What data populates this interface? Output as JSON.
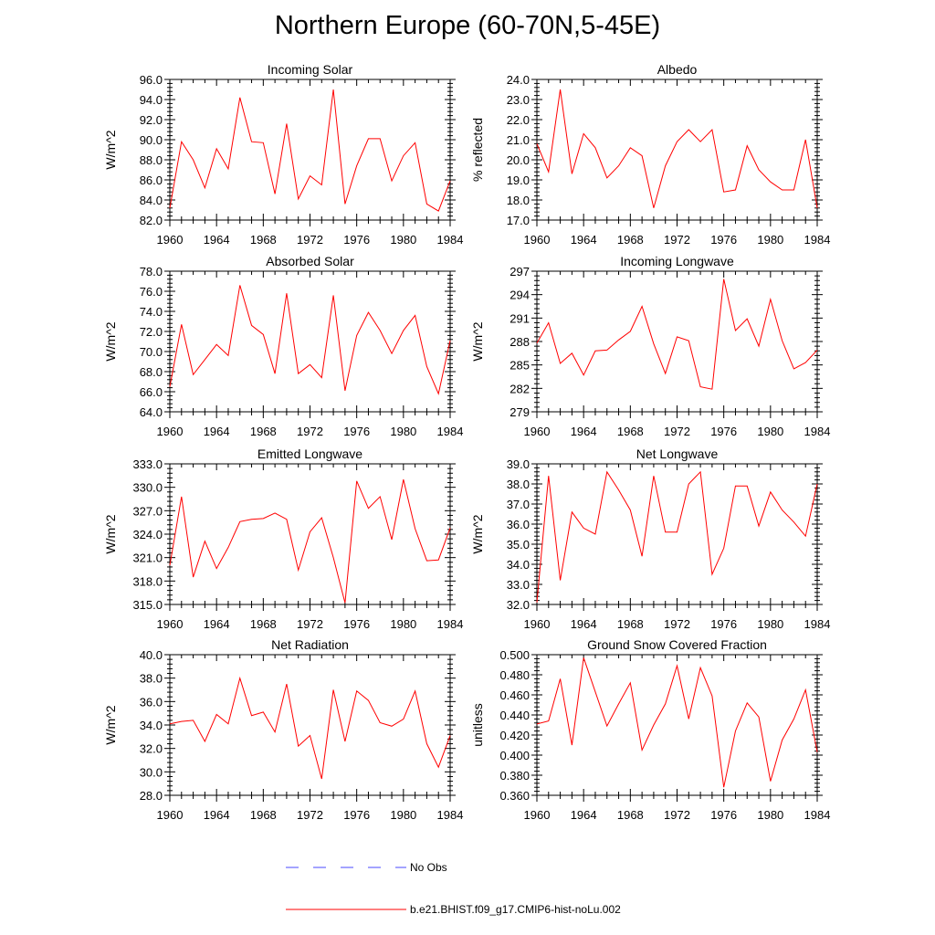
{
  "title": "Northern Europe (60-70N,5-45E)",
  "colors": {
    "model": "#ff0000",
    "obs": "#4a4aff",
    "axis": "#000000"
  },
  "legend": [
    {
      "label": "No Obs",
      "style": "dashed",
      "color": "#4a4aff"
    },
    {
      "label": "b.e21.BHIST.f09_g17.CMIP6-hist-noLu.002",
      "style": "solid",
      "color": "#ff0000"
    }
  ],
  "chart_data": [
    {
      "type": "line",
      "title": "Incoming Solar",
      "ylabel": "W/m^2",
      "xlabel": "",
      "xlim": [
        1960,
        1984
      ],
      "ylim": [
        82,
        96
      ],
      "xticks": [
        "1960",
        "1964",
        "1968",
        "1972",
        "1976",
        "1980",
        "1984"
      ],
      "yticks": [
        "82.0",
        "84.0",
        "86.0",
        "88.0",
        "90.0",
        "92.0",
        "94.0",
        "96.0"
      ],
      "x": [
        1960,
        1961,
        1962,
        1963,
        1964,
        1965,
        1966,
        1967,
        1968,
        1969,
        1970,
        1971,
        1972,
        1973,
        1974,
        1975,
        1976,
        1977,
        1978,
        1979,
        1980,
        1981,
        1982,
        1983,
        1984
      ],
      "series": [
        {
          "name": "b.e21.BHIST.f09_g17.CMIP6-hist-noLu.002",
          "values": [
            83.2,
            89.8,
            88.0,
            85.2,
            89.1,
            87.1,
            94.2,
            89.8,
            89.7,
            84.6,
            91.6,
            84.1,
            86.4,
            85.5,
            95.0,
            83.6,
            87.4,
            90.1,
            90.1,
            85.9,
            88.4,
            89.7,
            83.6,
            82.9,
            85.9
          ]
        }
      ]
    },
    {
      "type": "line",
      "title": "Albedo",
      "ylabel": "% reflected",
      "xlabel": "",
      "xlim": [
        1960,
        1984
      ],
      "ylim": [
        17,
        24
      ],
      "xticks": [
        "1960",
        "1964",
        "1968",
        "1972",
        "1976",
        "1980",
        "1984"
      ],
      "yticks": [
        "17.0",
        "18.0",
        "19.0",
        "20.0",
        "21.0",
        "22.0",
        "23.0",
        "24.0"
      ],
      "x": [
        1960,
        1961,
        1962,
        1963,
        1964,
        1965,
        1966,
        1967,
        1968,
        1969,
        1970,
        1971,
        1972,
        1973,
        1974,
        1975,
        1976,
        1977,
        1978,
        1979,
        1980,
        1981,
        1982,
        1983,
        1984
      ],
      "series": [
        {
          "name": "b.e21.BHIST.f09_g17.CMIP6-hist-noLu.002",
          "values": [
            20.8,
            19.4,
            23.5,
            19.3,
            21.3,
            20.6,
            19.1,
            19.7,
            20.6,
            20.2,
            17.6,
            19.7,
            20.9,
            21.5,
            20.9,
            21.5,
            18.4,
            18.5,
            20.7,
            19.5,
            18.9,
            18.5,
            18.5,
            21.0,
            17.6
          ]
        }
      ]
    },
    {
      "type": "line",
      "title": "Absorbed Solar",
      "ylabel": "W/m^2",
      "xlabel": "",
      "xlim": [
        1960,
        1984
      ],
      "ylim": [
        64,
        78
      ],
      "xticks": [
        "1960",
        "1964",
        "1968",
        "1972",
        "1976",
        "1980",
        "1984"
      ],
      "yticks": [
        "64.0",
        "66.0",
        "68.0",
        "70.0",
        "72.0",
        "74.0",
        "76.0",
        "78.0"
      ],
      "x": [
        1960,
        1961,
        1962,
        1963,
        1964,
        1965,
        1966,
        1967,
        1968,
        1969,
        1970,
        1971,
        1972,
        1973,
        1974,
        1975,
        1976,
        1977,
        1978,
        1979,
        1980,
        1981,
        1982,
        1983,
        1984
      ],
      "series": [
        {
          "name": "b.e21.BHIST.f09_g17.CMIP6-hist-noLu.002",
          "values": [
            66.5,
            72.7,
            67.7,
            69.2,
            70.7,
            69.6,
            76.6,
            72.6,
            71.7,
            67.8,
            75.8,
            67.8,
            68.7,
            67.4,
            75.6,
            66.1,
            71.6,
            73.9,
            72.1,
            69.8,
            72.1,
            73.6,
            68.5,
            65.8,
            71.1
          ]
        }
      ]
    },
    {
      "type": "line",
      "title": "Incoming Longwave",
      "ylabel": "W/m^2",
      "xlabel": "",
      "xlim": [
        1960,
        1984
      ],
      "ylim": [
        279,
        297
      ],
      "xticks": [
        "1960",
        "1964",
        "1968",
        "1972",
        "1976",
        "1980",
        "1984"
      ],
      "yticks": [
        "279",
        "282",
        "285",
        "288",
        "291",
        "294",
        "297"
      ],
      "x": [
        1960,
        1961,
        1962,
        1963,
        1964,
        1965,
        1966,
        1967,
        1968,
        1969,
        1970,
        1971,
        1972,
        1973,
        1974,
        1975,
        1976,
        1977,
        1978,
        1979,
        1980,
        1981,
        1982,
        1983,
        1984
      ],
      "series": [
        {
          "name": "b.e21.BHIST.f09_g17.CMIP6-hist-noLu.002",
          "values": [
            287.8,
            290.4,
            285.2,
            286.5,
            283.7,
            286.8,
            286.9,
            288.2,
            289.3,
            292.5,
            287.7,
            283.9,
            288.6,
            288.1,
            282.2,
            281.9,
            296.0,
            289.4,
            290.9,
            287.4,
            293.4,
            288.1,
            284.5,
            285.3,
            286.9
          ]
        }
      ]
    },
    {
      "type": "line",
      "title": "Emitted Longwave",
      "ylabel": "W/m^2",
      "xlabel": "",
      "xlim": [
        1960,
        1984
      ],
      "ylim": [
        315,
        333
      ],
      "xticks": [
        "1960",
        "1964",
        "1968",
        "1972",
        "1976",
        "1980",
        "1984"
      ],
      "yticks": [
        "315.0",
        "318.0",
        "321.0",
        "324.0",
        "327.0",
        "330.0",
        "333.0"
      ],
      "x": [
        1960,
        1961,
        1962,
        1963,
        1964,
        1965,
        1966,
        1967,
        1968,
        1969,
        1970,
        1971,
        1972,
        1973,
        1974,
        1975,
        1976,
        1977,
        1978,
        1979,
        1980,
        1981,
        1982,
        1983,
        1984
      ],
      "series": [
        {
          "name": "b.e21.BHIST.f09_g17.CMIP6-hist-noLu.002",
          "values": [
            320.0,
            328.8,
            318.5,
            323.1,
            319.6,
            322.3,
            325.6,
            325.9,
            326.0,
            326.7,
            325.9,
            319.4,
            324.3,
            326.1,
            321.0,
            315.2,
            330.8,
            327.3,
            328.8,
            323.3,
            331.0,
            324.7,
            320.6,
            320.7,
            324.8
          ]
        }
      ]
    },
    {
      "type": "line",
      "title": "Net Longwave",
      "ylabel": "W/m^2",
      "xlabel": "",
      "xlim": [
        1960,
        1984
      ],
      "ylim": [
        32,
        39
      ],
      "xticks": [
        "1960",
        "1964",
        "1968",
        "1972",
        "1976",
        "1980",
        "1984"
      ],
      "yticks": [
        "32.0",
        "33.0",
        "34.0",
        "35.0",
        "36.0",
        "37.0",
        "38.0",
        "39.0"
      ],
      "x": [
        1960,
        1961,
        1962,
        1963,
        1964,
        1965,
        1966,
        1967,
        1968,
        1969,
        1970,
        1971,
        1972,
        1973,
        1974,
        1975,
        1976,
        1977,
        1978,
        1979,
        1980,
        1981,
        1982,
        1983,
        1984
      ],
      "series": [
        {
          "name": "b.e21.BHIST.f09_g17.CMIP6-hist-noLu.002",
          "values": [
            32.1,
            38.4,
            33.2,
            36.6,
            35.8,
            35.5,
            38.6,
            37.7,
            36.7,
            34.4,
            38.4,
            35.6,
            35.6,
            38.0,
            38.6,
            33.5,
            34.8,
            37.9,
            37.9,
            35.9,
            37.6,
            36.7,
            36.1,
            35.4,
            38.0
          ]
        }
      ]
    },
    {
      "type": "line",
      "title": "Net Radiation",
      "ylabel": "W/m^2",
      "xlabel": "",
      "xlim": [
        1960,
        1984
      ],
      "ylim": [
        28,
        40
      ],
      "xticks": [
        "1960",
        "1964",
        "1968",
        "1972",
        "1976",
        "1980",
        "1984"
      ],
      "yticks": [
        "28.0",
        "30.0",
        "32.0",
        "34.0",
        "36.0",
        "38.0",
        "40.0"
      ],
      "x": [
        1960,
        1961,
        1962,
        1963,
        1964,
        1965,
        1966,
        1967,
        1968,
        1969,
        1970,
        1971,
        1972,
        1973,
        1974,
        1975,
        1976,
        1977,
        1978,
        1979,
        1980,
        1981,
        1982,
        1983,
        1984
      ],
      "series": [
        {
          "name": "b.e21.BHIST.f09_g17.CMIP6-hist-noLu.002",
          "values": [
            34.1,
            34.3,
            34.4,
            32.6,
            34.9,
            34.1,
            38.0,
            34.8,
            35.1,
            33.4,
            37.5,
            32.2,
            33.1,
            29.4,
            37.0,
            32.6,
            36.9,
            36.1,
            34.2,
            33.9,
            34.5,
            36.9,
            32.4,
            30.4,
            33.1
          ]
        }
      ]
    },
    {
      "type": "line",
      "title": "Ground Snow Covered Fraction",
      "ylabel": "unitless",
      "xlabel": "",
      "xlim": [
        1960,
        1984
      ],
      "ylim": [
        0.36,
        0.5
      ],
      "xticks": [
        "1960",
        "1964",
        "1968",
        "1972",
        "1976",
        "1980",
        "1984"
      ],
      "yticks": [
        "0.360",
        "0.380",
        "0.400",
        "0.420",
        "0.440",
        "0.460",
        "0.480",
        "0.500"
      ],
      "x": [
        1960,
        1961,
        1962,
        1963,
        1964,
        1965,
        1966,
        1967,
        1968,
        1969,
        1970,
        1971,
        1972,
        1973,
        1974,
        1975,
        1976,
        1977,
        1978,
        1979,
        1980,
        1981,
        1982,
        1983,
        1984
      ],
      "series": [
        {
          "name": "b.e21.BHIST.f09_g17.CMIP6-hist-noLu.002",
          "values": [
            0.431,
            0.434,
            0.476,
            0.41,
            0.497,
            0.463,
            0.429,
            0.451,
            0.472,
            0.405,
            0.43,
            0.451,
            0.489,
            0.436,
            0.487,
            0.459,
            0.368,
            0.424,
            0.452,
            0.438,
            0.374,
            0.415,
            0.436,
            0.465,
            0.403
          ]
        }
      ]
    }
  ]
}
